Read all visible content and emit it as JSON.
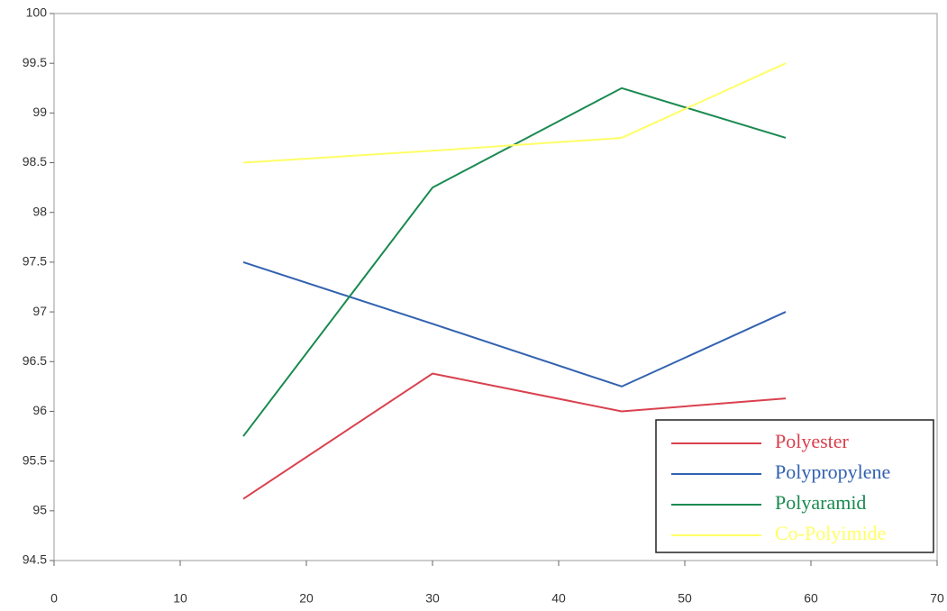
{
  "chart_data": {
    "type": "line",
    "x": [
      15,
      30,
      45,
      58
    ],
    "series": [
      {
        "name": "Polyester",
        "color": "#d9414f",
        "values": [
          95.12,
          96.38,
          96.0,
          96.13
        ]
      },
      {
        "name": "Polypropylene",
        "color": "#3262b0",
        "values": [
          97.5,
          96.88,
          96.25,
          97.0
        ]
      },
      {
        "name": "Polyaramid",
        "color": "#1a8a50",
        "values": [
          95.75,
          98.25,
          99.25,
          98.75
        ]
      },
      {
        "name": "Co-Polyimide",
        "color": "#ffff66",
        "values": [
          98.5,
          98.62,
          98.75,
          99.5
        ]
      }
    ],
    "xlim": [
      0,
      70
    ],
    "xticks": [
      0,
      10,
      20,
      30,
      40,
      50,
      60,
      70
    ],
    "ylim": [
      94.5,
      100
    ],
    "yticks": [
      94.5,
      95,
      95.5,
      96,
      96.5,
      97,
      97.5,
      98,
      98.5,
      99,
      99.5,
      100
    ],
    "legend": "lower right"
  }
}
